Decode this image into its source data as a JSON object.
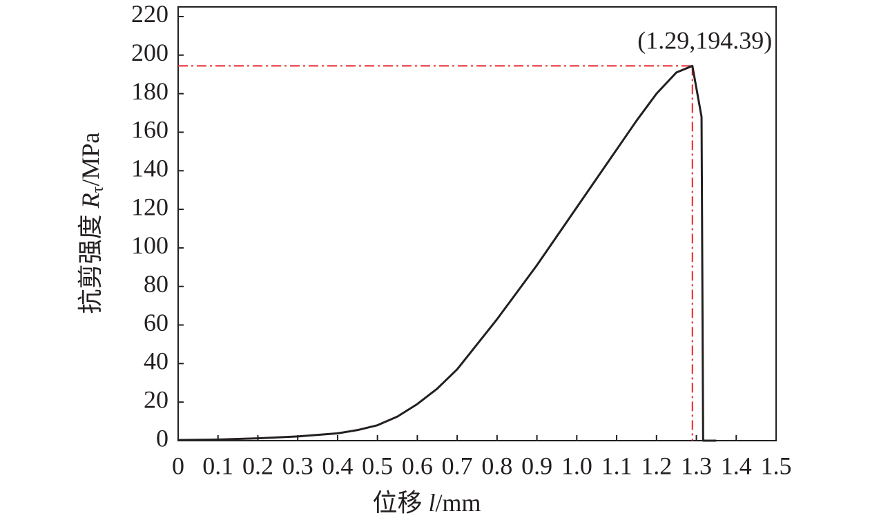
{
  "chart_data": {
    "type": "line",
    "x_label": [
      "位移 ",
      "l",
      "/mm"
    ],
    "y_label": [
      "抗剪强度 ",
      "R",
      "τ",
      "/MPa"
    ],
    "xlim": [
      0,
      1.5
    ],
    "ylim": [
      0,
      225
    ],
    "xticks": [
      0,
      0.1,
      0.2,
      0.3,
      0.4,
      0.5,
      0.6,
      0.7,
      0.8,
      0.9,
      {
        "value": 1,
        "label": "1.0"
      },
      1.1,
      1.2,
      1.3,
      1.4,
      1.5
    ],
    "yticks": [
      0,
      20,
      40,
      60,
      80,
      100,
      120,
      140,
      160,
      180,
      200,
      220
    ],
    "series": [
      {
        "color": "#231f20",
        "x": [
          0,
          0.1,
          0.2,
          0.3,
          0.4,
          0.45,
          0.5,
          0.55,
          0.6,
          0.65,
          0.7,
          0.75,
          0.8,
          0.85,
          0.9,
          0.95,
          1.0,
          1.05,
          1.1,
          1.15,
          1.2,
          1.25,
          1.29,
          1.313,
          1.317,
          1.35
        ],
        "values": [
          0.3,
          0.6,
          1.2,
          2.2,
          3.8,
          5.5,
          8,
          12.5,
          19,
          27,
          37,
          50,
          63,
          77,
          91,
          106,
          121,
          136,
          151,
          166,
          180,
          191,
          194.39,
          168,
          0,
          0
        ]
      }
    ],
    "annotation": {
      "text": "(1.29,194.39)",
      "x": 1.29,
      "y": 194.39,
      "color": "#e8262a"
    }
  }
}
